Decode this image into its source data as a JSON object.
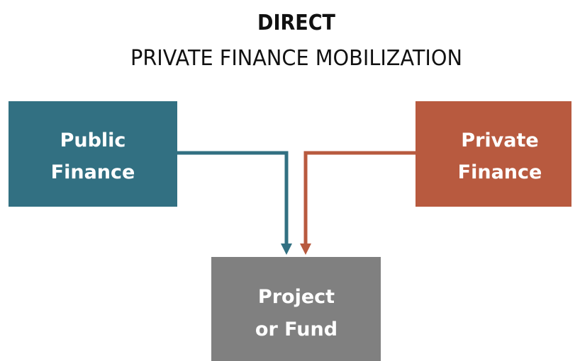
{
  "header": {
    "title": "DIRECT",
    "subtitle": "PRIVATE FINANCE MOBILIZATION"
  },
  "nodes": [
    {
      "label": [
        "Public",
        "Finance"
      ]
    },
    {
      "label": [
        "Private",
        "Finance"
      ]
    },
    {
      "label": [
        "Project",
        "or Fund"
      ]
    }
  ]
}
